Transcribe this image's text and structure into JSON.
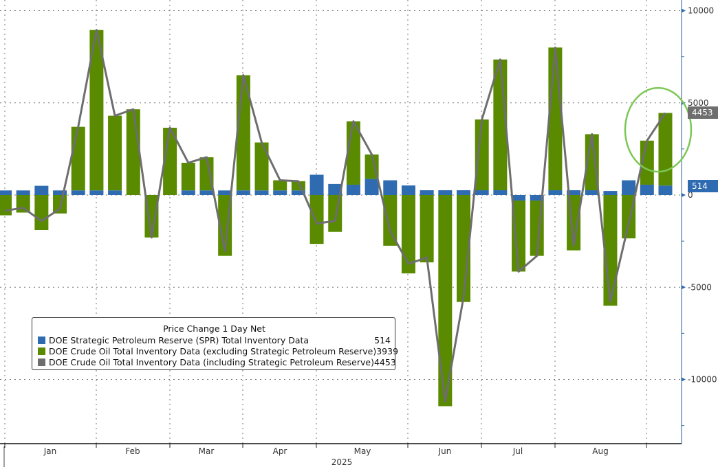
{
  "chart_data": {
    "type": "bar",
    "title": "Price Change 1 Day Net",
    "xlabel": "2025",
    "ylabel": "",
    "ylim": [
      -13000,
      10500
    ],
    "yticks": [
      10000,
      5000,
      0,
      -5000,
      -10000
    ],
    "months": [
      "Jan",
      "Feb",
      "Mar",
      "Apr",
      "May",
      "Jun",
      "Jul",
      "Aug"
    ],
    "year_label": "2025",
    "grid": true,
    "legend_placement": "bottom-left",
    "series": [
      {
        "name": "DOE Strategic Petroleum Reserve (SPR) Total Inventory Data",
        "kind": "stacked-bar",
        "color": "#2f6bb0",
        "last": "514",
        "values": [
          250,
          250,
          500,
          250,
          250,
          250,
          250,
          0,
          0,
          0,
          250,
          250,
          250,
          250,
          250,
          250,
          250,
          1100,
          600,
          560,
          870,
          800,
          520,
          260,
          260,
          260,
          260,
          260,
          -300,
          -300,
          260,
          260,
          260,
          220,
          800,
          560,
          514
        ]
      },
      {
        "name": "DOE Crude Oil Total Inventory Data (excluding Strategic Petroleum Reserve)",
        "kind": "stacked-bar",
        "color": "#5a8a00",
        "last": "3939",
        "values": [
          -1100,
          -950,
          -1900,
          -1000,
          3450,
          8700,
          4050,
          4650,
          -2300,
          3650,
          1500,
          1800,
          -3300,
          6250,
          2600,
          550,
          500,
          -2650,
          -2000,
          3440,
          1330,
          -2750,
          -4250,
          -3650,
          -11450,
          -5800,
          3840,
          7090,
          -3850,
          -3000,
          7740,
          -3000,
          3040,
          -6000,
          -2350,
          2390,
          3939
        ]
      },
      {
        "name": "DOE Crude Oil Total Inventory Data (including Strategic Petroleum Reserve)",
        "kind": "line",
        "color": "#6e6e6e",
        "last": "4453",
        "values": [
          -850,
          -700,
          -1400,
          -750,
          3700,
          8950,
          4300,
          4650,
          -2300,
          3650,
          1750,
          2050,
          -3050,
          6500,
          2850,
          800,
          750,
          -1550,
          -1400,
          4000,
          2200,
          -1950,
          -3730,
          -3390,
          -11190,
          -5540,
          4100,
          7350,
          -4150,
          -3300,
          8000,
          -2740,
          3300,
          -5780,
          -1550,
          2950,
          4453
        ]
      }
    ],
    "highlight_tags": {
      "total": "4453",
      "spr": "514"
    }
  }
}
